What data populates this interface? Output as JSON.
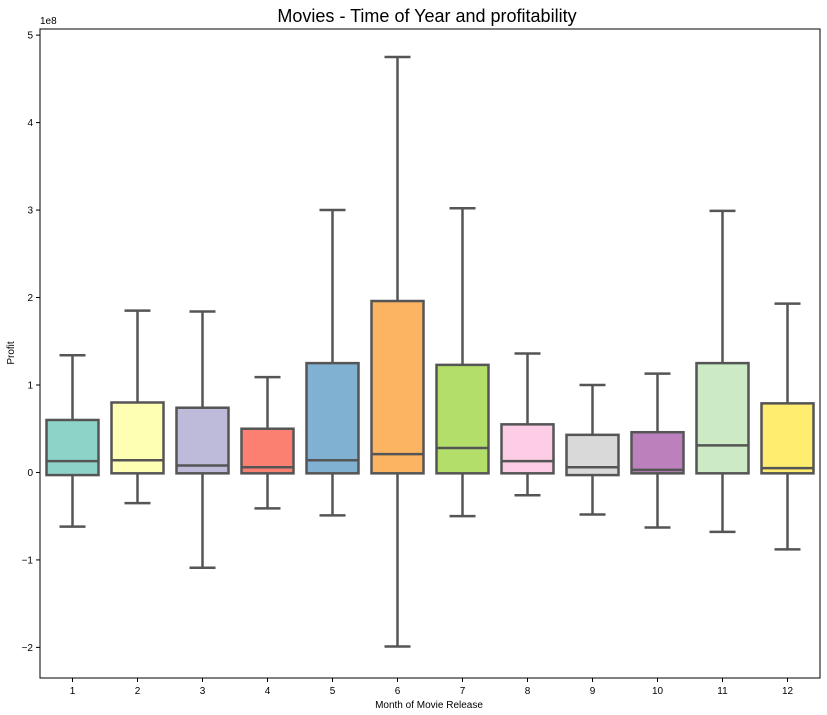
{
  "chart_data": {
    "type": "box",
    "title": "Movies - Time of Year and profitability",
    "xlabel": "Month of Movie Release",
    "ylabel": "Profit",
    "y_scale_label": "1e8",
    "y_unit_multiplier": 100000000,
    "ylim": [
      -2.35,
      5.07
    ],
    "yticks": [
      -2,
      -1,
      0,
      1,
      2,
      3,
      4,
      5
    ],
    "ytick_labels": [
      "−2",
      "−1",
      "0",
      "1",
      "2",
      "3",
      "4",
      "5"
    ],
    "categories": [
      "1",
      "2",
      "3",
      "4",
      "5",
      "6",
      "7",
      "8",
      "9",
      "10",
      "11",
      "12"
    ],
    "boxes": [
      {
        "month": "1",
        "whisker_low": -0.62,
        "q1": -0.03,
        "median": 0.13,
        "q3": 0.6,
        "whisker_high": 1.34,
        "color": "#8dd3c7"
      },
      {
        "month": "2",
        "whisker_low": -0.35,
        "q1": -0.01,
        "median": 0.14,
        "q3": 0.8,
        "whisker_high": 1.85,
        "color": "#ffffb3"
      },
      {
        "month": "3",
        "whisker_low": -1.09,
        "q1": -0.01,
        "median": 0.08,
        "q3": 0.74,
        "whisker_high": 1.84,
        "color": "#bebada"
      },
      {
        "month": "4",
        "whisker_low": -0.41,
        "q1": -0.01,
        "median": 0.06,
        "q3": 0.5,
        "whisker_high": 1.09,
        "color": "#fb8072"
      },
      {
        "month": "5",
        "whisker_low": -0.49,
        "q1": -0.01,
        "median": 0.14,
        "q3": 1.25,
        "whisker_high": 3.0,
        "color": "#80b1d3"
      },
      {
        "month": "6",
        "whisker_low": -1.99,
        "q1": -0.01,
        "median": 0.21,
        "q3": 1.96,
        "whisker_high": 4.75,
        "color": "#fdb462"
      },
      {
        "month": "7",
        "whisker_low": -0.5,
        "q1": -0.01,
        "median": 0.28,
        "q3": 1.23,
        "whisker_high": 3.02,
        "color": "#b3de69"
      },
      {
        "month": "8",
        "whisker_low": -0.26,
        "q1": -0.01,
        "median": 0.13,
        "q3": 0.55,
        "whisker_high": 1.36,
        "color": "#fccde5"
      },
      {
        "month": "9",
        "whisker_low": -0.48,
        "q1": -0.03,
        "median": 0.06,
        "q3": 0.43,
        "whisker_high": 1.0,
        "color": "#d9d9d9"
      },
      {
        "month": "10",
        "whisker_low": -0.63,
        "q1": -0.01,
        "median": 0.03,
        "q3": 0.46,
        "whisker_high": 1.13,
        "color": "#bc80bd"
      },
      {
        "month": "11",
        "whisker_low": -0.68,
        "q1": -0.01,
        "median": 0.31,
        "q3": 1.25,
        "whisker_high": 2.99,
        "color": "#ccebc5"
      },
      {
        "month": "12",
        "whisker_low": -0.88,
        "q1": -0.01,
        "median": 0.05,
        "q3": 0.79,
        "whisker_high": 1.93,
        "color": "#ffed6f"
      }
    ],
    "line_color": "#555555",
    "grid": false,
    "legend": "none"
  }
}
